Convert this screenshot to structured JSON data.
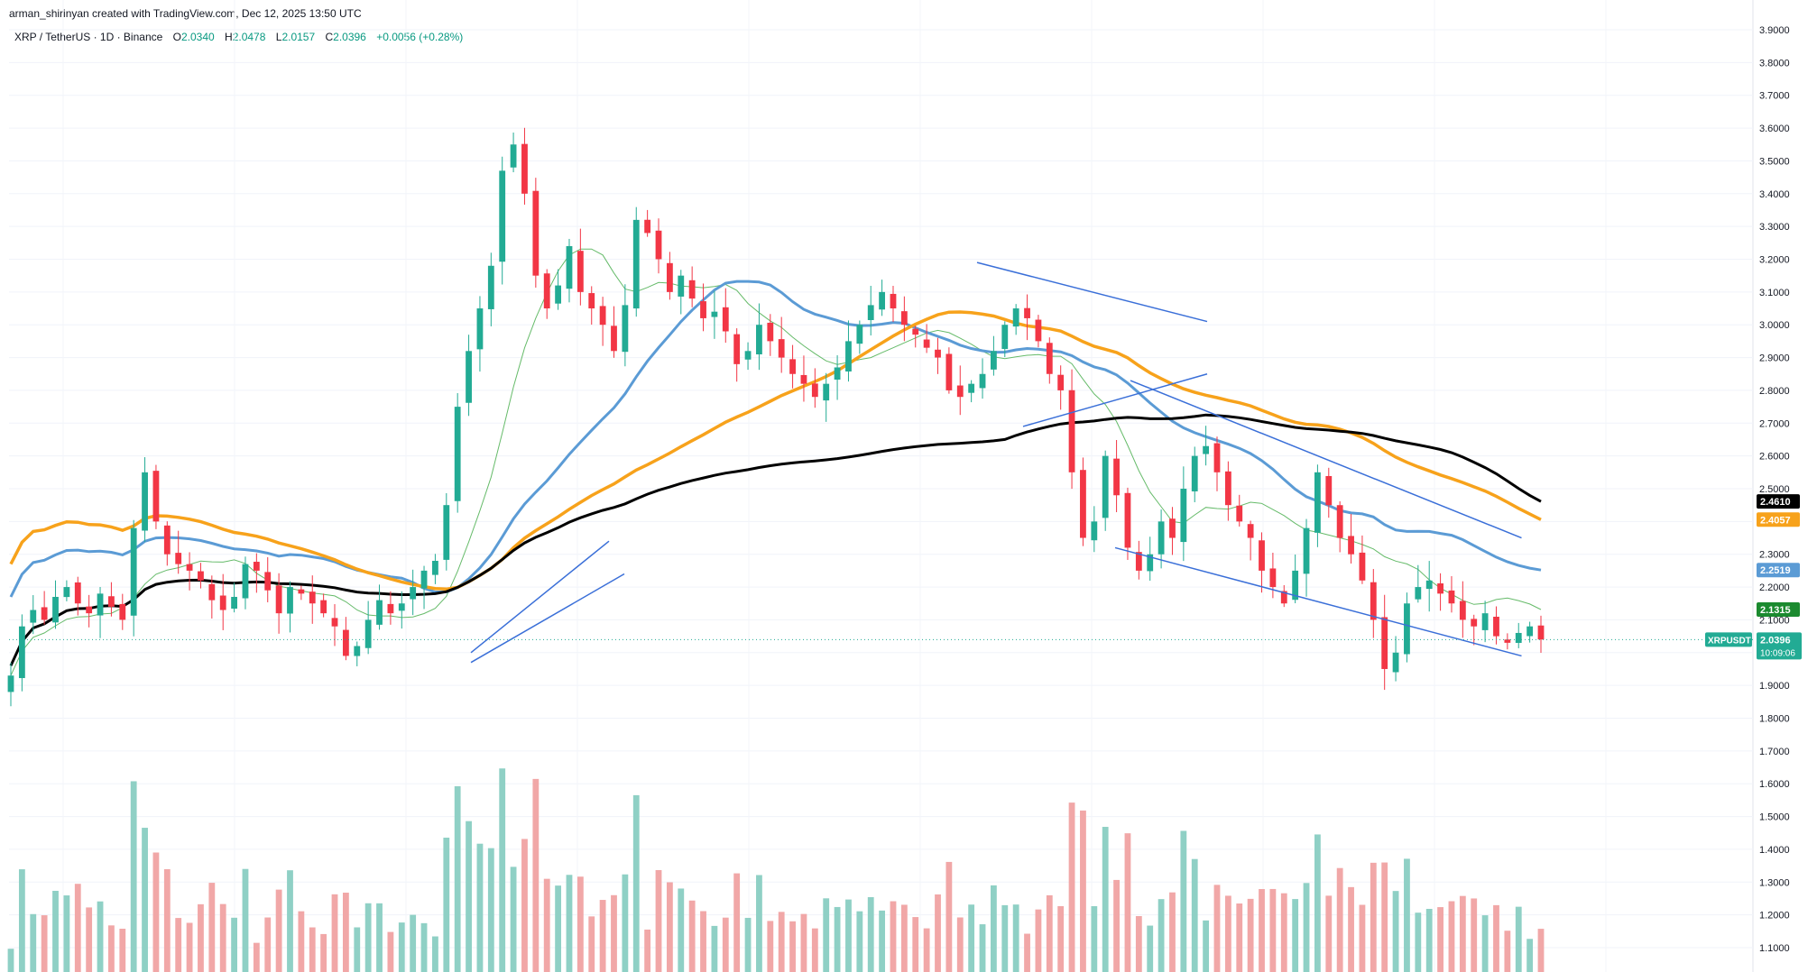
{
  "header": {
    "credit": "arman_shirinyan created with TradingView.com, Dec 12, 2025 13:50 UTC"
  },
  "legend": {
    "symbol": "XRP / TetherUS · 1D · Binance",
    "o_label": "O",
    "o_value": "2.0340",
    "h_label": "H",
    "h_value": "2.0478",
    "l_label": "L",
    "l_value": "2.0157",
    "c_label": "C",
    "c_value": "2.0396",
    "change": "+0.0056 (+0.28%)"
  },
  "chart_data": {
    "type": "candlestick",
    "symbol": "XRPUSDT",
    "ylim": [
      1.05,
      3.93
    ],
    "y_ticks": [
      "3.9000",
      "3.8000",
      "3.7000",
      "3.6000",
      "3.5000",
      "3.4000",
      "3.3000",
      "3.2000",
      "3.1000",
      "3.0000",
      "2.9000",
      "2.8000",
      "2.7000",
      "2.6000",
      "2.5000",
      "2.4000",
      "2.3000",
      "2.2000",
      "2.1000",
      "2.0000",
      "1.9000",
      "1.8000",
      "1.7000",
      "1.6000",
      "1.5000",
      "1.4000",
      "1.3000",
      "1.2000",
      "1.1000"
    ],
    "close_path": [
      1.93,
      2.08,
      2.13,
      2.1,
      2.17,
      2.2,
      2.15,
      2.12,
      2.18,
      2.14,
      2.1,
      2.38,
      2.55,
      2.4,
      2.3,
      2.27,
      2.25,
      2.22,
      2.16,
      2.13,
      2.17,
      2.27,
      2.25,
      2.19,
      2.12,
      2.2,
      2.18,
      2.15,
      2.12,
      2.08,
      1.99,
      2.02,
      2.1,
      2.16,
      2.12,
      2.15,
      2.2,
      2.25,
      2.28,
      2.45,
      2.75,
      2.92,
      3.05,
      3.18,
      3.47,
      3.55,
      3.4,
      3.15,
      3.05,
      3.12,
      3.24,
      3.1,
      3.05,
      3.0,
      2.92,
      3.06,
      3.32,
      3.28,
      3.2,
      3.1,
      3.15,
      3.08,
      3.02,
      3.04,
      2.98,
      2.88,
      2.92,
      3.0,
      2.95,
      2.9,
      2.85,
      2.82,
      2.78,
      2.82,
      2.87,
      2.95,
      3.0,
      3.06,
      3.1,
      3.05,
      3.0,
      2.97,
      2.93,
      2.9,
      2.8,
      2.78,
      2.82,
      2.85,
      2.92,
      3.0,
      3.05,
      3.02,
      2.95,
      2.85,
      2.8,
      2.55,
      2.35,
      2.4,
      2.6,
      2.48,
      2.32,
      2.25,
      2.3,
      2.4,
      2.35,
      2.5,
      2.6,
      2.63,
      2.55,
      2.45,
      2.4,
      2.35,
      2.25,
      2.2,
      2.15,
      2.25,
      2.38,
      2.55,
      2.45,
      2.35,
      2.3,
      2.22,
      2.1,
      1.95,
      2.0,
      2.15,
      2.2,
      2.22,
      2.18,
      2.15,
      2.1,
      2.08,
      2.12,
      2.05,
      2.03,
      2.06,
      2.08,
      2.04
    ],
    "ma_slow": {
      "color": "#000000",
      "start": 1.96,
      "end": 2.461
    },
    "ma_orange": {
      "color": "#f7a21b",
      "start": 2.27,
      "end": 2.4057
    },
    "ma_blue": {
      "color": "#5b9bd5",
      "start": 2.17,
      "end": 2.2519
    },
    "ma_green": {
      "color": "#66bb6a",
      "end": 2.1315
    },
    "price_tags": [
      {
        "value": "2.4610",
        "color": "#000000"
      },
      {
        "value": "2.4057",
        "color": "#f7a21b"
      },
      {
        "value": "2.2519",
        "color": "#5b9bd5"
      },
      {
        "value": "2.1315",
        "color": "#1b8a2f"
      }
    ],
    "current": {
      "symbol": "XRPUSDT",
      "value": "2.0396",
      "countdown": "10:09:06",
      "color": "#22ab94"
    },
    "trendlines": [
      {
        "from": [
          2.0,
          1.97
        ],
        "to": [
          2.34,
          2.27
        ]
      },
      {
        "from": [
          1.97,
          1.97
        ],
        "to": [
          2.24,
          2.24
        ]
      },
      {
        "from": [
          3.19,
          3.19
        ],
        "to": [
          3.01,
          3.01
        ]
      },
      {
        "from": [
          2.69,
          2.69
        ],
        "to": [
          2.85,
          2.85
        ]
      },
      {
        "from": [
          2.83,
          2.83
        ],
        "to": [
          2.35,
          2.35
        ]
      },
      {
        "from": [
          2.32,
          2.32
        ],
        "to": [
          1.99,
          1.99
        ]
      }
    ],
    "volume_colors": {
      "up": "#8fd0c5",
      "down": "#f1a7a7"
    }
  }
}
